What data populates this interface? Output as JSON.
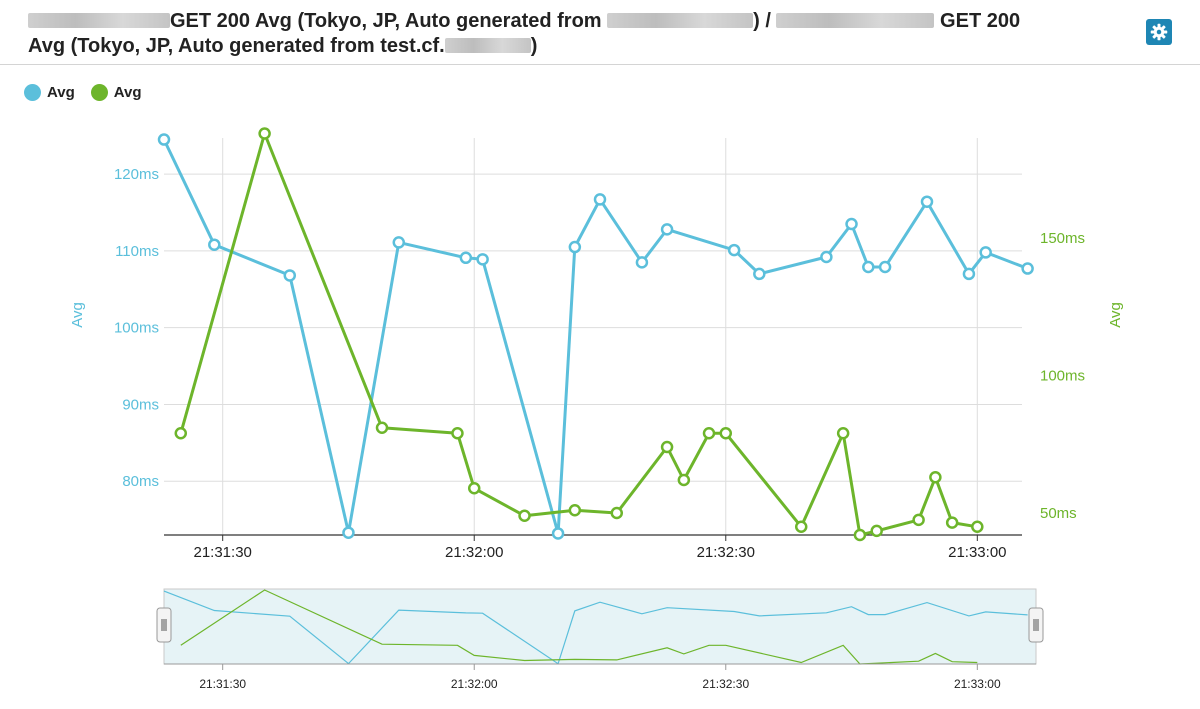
{
  "header": {
    "title_parts": [
      "GET 200 Avg (Tokyo, JP, Auto generated from ",
      ") / ",
      "GET 200",
      "Avg (Tokyo, JP, Auto generated from test.cf.",
      ")"
    ],
    "settings_icon": "gear-icon"
  },
  "colors": {
    "blue": "#5bbfdb",
    "green": "#6db52b",
    "button": "#1e86b4"
  },
  "chart_data": {
    "type": "line",
    "title": "",
    "x": [
      "21:31:23",
      "21:31:25",
      "21:31:29",
      "21:31:31",
      "21:31:33",
      "21:31:35",
      "21:31:38",
      "21:31:42",
      "21:31:45",
      "21:31:46",
      "21:31:48",
      "21:31:51",
      "21:31:54",
      "21:31:56",
      "21:31:58",
      "21:32:01",
      "21:32:02",
      "21:32:05",
      "21:32:07",
      "21:32:08",
      "21:32:10",
      "21:32:12",
      "21:32:14",
      "21:32:15",
      "21:32:18",
      "21:32:20",
      "21:32:25",
      "21:32:27",
      "21:32:29",
      "21:32:30",
      "21:32:32",
      "21:32:33",
      "21:32:34",
      "21:32:36",
      "21:32:37",
      "21:32:39",
      "21:32:40",
      "21:32:42",
      "21:32:44",
      "21:32:45",
      "21:32:47",
      "21:32:49",
      "21:33:01"
    ],
    "series": [
      {
        "name": "Avg",
        "axis": "left",
        "color": "#5bbfdb",
        "points": [
          [
            "21:31:23",
            124.5
          ],
          [
            "21:31:29",
            110.8
          ],
          [
            "21:31:38",
            106.8
          ],
          [
            "21:31:45",
            73.3
          ],
          [
            "21:31:51",
            111.1
          ],
          [
            "21:31:59",
            109.1
          ],
          [
            "21:32:01",
            108.9
          ],
          [
            "21:32:10",
            73.2
          ],
          [
            "21:32:12",
            110.5
          ],
          [
            "21:32:15",
            116.7
          ],
          [
            "21:32:20",
            108.5
          ],
          [
            "21:32:23",
            112.8
          ],
          [
            "21:32:31",
            110.1
          ],
          [
            "21:32:34",
            107.0
          ],
          [
            "21:32:42",
            109.2
          ],
          [
            "21:32:45",
            113.5
          ],
          [
            "21:32:47",
            107.9
          ],
          [
            "21:32:49",
            107.9
          ],
          [
            "21:32:54",
            116.4
          ],
          [
            "21:32:59",
            107.0
          ],
          [
            "21:33:01",
            109.8
          ],
          [
            "21:33:06",
            107.7
          ]
        ]
      },
      {
        "name": "Avg",
        "axis": "right",
        "color": "#6db52b",
        "points": [
          [
            "21:31:25",
            79
          ],
          [
            "21:31:35",
            188
          ],
          [
            "21:31:49",
            81
          ],
          [
            "21:31:58",
            79
          ],
          [
            "21:32:00",
            59
          ],
          [
            "21:32:06",
            49
          ],
          [
            "21:32:12",
            51
          ],
          [
            "21:32:17",
            50
          ],
          [
            "21:32:23",
            74
          ],
          [
            "21:32:25",
            62
          ],
          [
            "21:32:28",
            79
          ],
          [
            "21:32:30",
            79
          ],
          [
            "21:32:39",
            45
          ],
          [
            "21:32:44",
            79
          ],
          [
            "21:32:46",
            42
          ],
          [
            "21:32:48",
            43.5
          ],
          [
            "21:32:53",
            47.5
          ],
          [
            "21:32:55",
            63
          ],
          [
            "21:32:57",
            46.5
          ],
          [
            "21:33:00",
            45
          ]
        ]
      }
    ],
    "x_ticks": [
      "21:31:30",
      "21:32:00",
      "21:32:30",
      "21:33:00"
    ],
    "y_left": {
      "label": "Avg",
      "ticks": [
        "120ms",
        "110ms",
        "100ms",
        "90ms",
        "80ms"
      ],
      "tick_values": [
        120,
        110,
        100,
        90,
        80
      ],
      "range": [
        73,
        126
      ]
    },
    "y_right": {
      "label": "Avg",
      "ticks": [
        "150ms",
        "100ms",
        "50ms"
      ],
      "tick_values": [
        150,
        100,
        50
      ],
      "range": [
        42,
        190
      ]
    },
    "x_range": [
      "21:31:23",
      "21:33:07"
    ],
    "grid": true,
    "legend": {
      "position": "top-left",
      "entries": [
        "Avg",
        "Avg"
      ]
    },
    "navigator": {
      "x_ticks": [
        "21:31:30",
        "21:32:00",
        "21:32:30",
        "21:33:00"
      ]
    }
  }
}
